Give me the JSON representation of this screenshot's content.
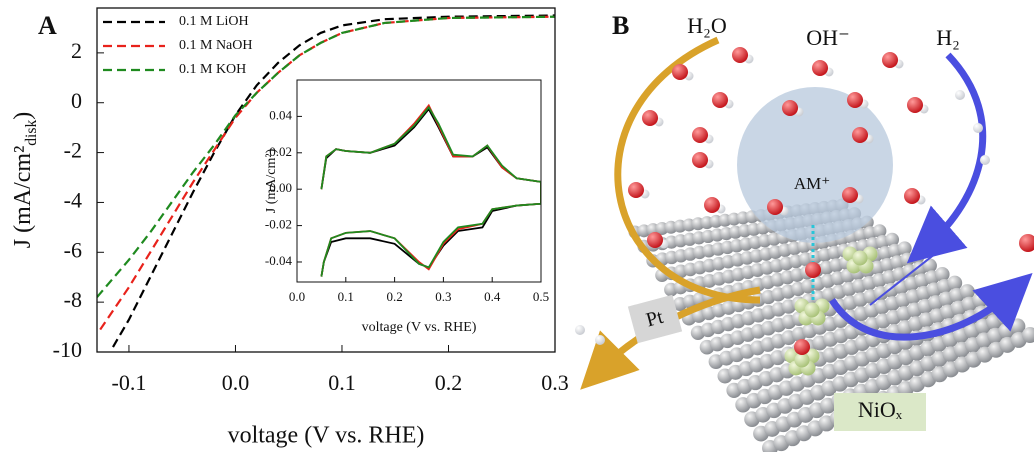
{
  "chart_data": [
    {
      "type": "line",
      "panel": "A",
      "linestyle": "dashed",
      "xlabel": "voltage (V vs. RHE)",
      "ylabel": [
        "J (mA/cm²",
        "disk",
        ")"
      ],
      "xlim": [
        -0.13,
        0.3
      ],
      "ylim": [
        -10,
        3.8
      ],
      "xticks": [
        -0.1,
        {
          "value": 0,
          "label": "0.0"
        },
        0.1,
        0.2,
        0.3
      ],
      "yticks": [
        2,
        0,
        -2,
        -4,
        -6,
        -8,
        -10
      ],
      "legend": "upper left",
      "series": [
        {
          "name": "0.1 M LiOH",
          "color": "#000000",
          "x": [
            -0.115,
            -0.1,
            -0.08,
            -0.06,
            -0.04,
            -0.02,
            0,
            0.02,
            0.04,
            0.06,
            0.08,
            0.1,
            0.14,
            0.2,
            0.3
          ],
          "values": [
            -9.8,
            -8.7,
            -7.0,
            -5.3,
            -3.6,
            -2.0,
            -0.5,
            0.7,
            1.6,
            2.3,
            2.8,
            3.1,
            3.35,
            3.45,
            3.5
          ]
        },
        {
          "name": "0.1 M NaOH",
          "color": "#e8221b",
          "x": [
            -0.127,
            -0.1,
            -0.08,
            -0.06,
            -0.04,
            -0.02,
            0,
            0.02,
            0.04,
            0.06,
            0.08,
            0.1,
            0.14,
            0.2,
            0.3
          ],
          "values": [
            -9.1,
            -7.4,
            -6.0,
            -4.6,
            -3.2,
            -1.9,
            -0.6,
            0.4,
            1.2,
            1.9,
            2.4,
            2.8,
            3.2,
            3.4,
            3.45
          ]
        },
        {
          "name": "0.1 M KOH",
          "color": "#1f8a1f",
          "x": [
            -0.13,
            -0.1,
            -0.08,
            -0.06,
            -0.04,
            -0.02,
            0,
            0.02,
            0.04,
            0.06,
            0.08,
            0.1,
            0.14,
            0.2,
            0.3
          ],
          "values": [
            -7.8,
            -6.3,
            -5.2,
            -4.0,
            -2.8,
            -1.7,
            -0.5,
            0.4,
            1.2,
            1.9,
            2.4,
            2.8,
            3.2,
            3.4,
            3.45
          ]
        }
      ]
    },
    {
      "type": "line",
      "linestyle": "solid",
      "xlabel": "voltage (V vs. RHE)",
      "ylabel": [
        "J (mA/cm²)"
      ],
      "xlim": [
        0,
        0.5
      ],
      "ylim": [
        -0.051,
        0.06
      ],
      "xticks": [
        {
          "value": 0,
          "label": "0.0"
        },
        0.1,
        0.2,
        0.3,
        0.4,
        0.5
      ],
      "yticks": [
        0.04,
        0.02,
        {
          "value": 0,
          "label": "0.00"
        },
        -0.02,
        -0.04
      ],
      "series": [
        {
          "color": "#000000",
          "x": [
            0.05,
            0.06,
            0.08,
            0.1,
            0.15,
            0.2,
            0.24,
            0.27,
            0.29,
            0.32,
            0.36,
            0.39,
            0.42,
            0.45,
            0.5,
            0.5,
            0.45,
            0.4,
            0.38,
            0.33,
            0.3,
            0.27,
            0.25,
            0.2,
            0.15,
            0.1,
            0.07,
            0.055,
            0.05
          ],
          "values": [
            0,
            0.017,
            0.022,
            0.021,
            0.02,
            0.024,
            0.034,
            0.044,
            0.034,
            0.018,
            0.018,
            0.023,
            0.012,
            0.006,
            0.004,
            -0.008,
            -0.009,
            -0.012,
            -0.021,
            -0.023,
            -0.031,
            -0.043,
            -0.041,
            -0.03,
            -0.027,
            -0.027,
            -0.029,
            -0.04,
            -0.048
          ]
        },
        {
          "color": "#e8221b",
          "x": [
            0.05,
            0.06,
            0.08,
            0.1,
            0.15,
            0.2,
            0.24,
            0.27,
            0.29,
            0.32,
            0.36,
            0.39,
            0.42,
            0.45,
            0.5,
            0.5,
            0.45,
            0.4,
            0.38,
            0.33,
            0.3,
            0.27,
            0.25,
            0.2,
            0.15,
            0.1,
            0.07,
            0.055,
            0.05
          ],
          "values": [
            0,
            0.018,
            0.022,
            0.021,
            0.02,
            0.025,
            0.036,
            0.046,
            0.035,
            0.018,
            0.018,
            0.024,
            0.012,
            0.006,
            0.004,
            -0.008,
            -0.009,
            -0.011,
            -0.019,
            -0.022,
            -0.03,
            -0.044,
            -0.04,
            -0.027,
            -0.023,
            -0.024,
            -0.027,
            -0.04,
            -0.048
          ]
        },
        {
          "color": "#1f8a1f",
          "x": [
            0.05,
            0.06,
            0.08,
            0.1,
            0.15,
            0.2,
            0.24,
            0.27,
            0.29,
            0.32,
            0.36,
            0.39,
            0.42,
            0.45,
            0.5,
            0.5,
            0.45,
            0.4,
            0.38,
            0.33,
            0.3,
            0.27,
            0.25,
            0.2,
            0.15,
            0.1,
            0.07,
            0.055,
            0.05
          ],
          "values": [
            0,
            0.018,
            0.022,
            0.021,
            0.02,
            0.025,
            0.035,
            0.045,
            0.036,
            0.019,
            0.018,
            0.024,
            0.013,
            0.006,
            0.004,
            -0.008,
            -0.009,
            -0.011,
            -0.019,
            -0.021,
            -0.029,
            -0.043,
            -0.041,
            -0.027,
            -0.023,
            -0.024,
            -0.027,
            -0.04,
            -0.048
          ]
        }
      ]
    }
  ],
  "diagram": {
    "panel": "B",
    "h2o": "H₂O",
    "oh": "OH⁻",
    "h2": "H₂",
    "am": "AM⁺",
    "pt": "Pt",
    "niox": "NiOₓ"
  }
}
